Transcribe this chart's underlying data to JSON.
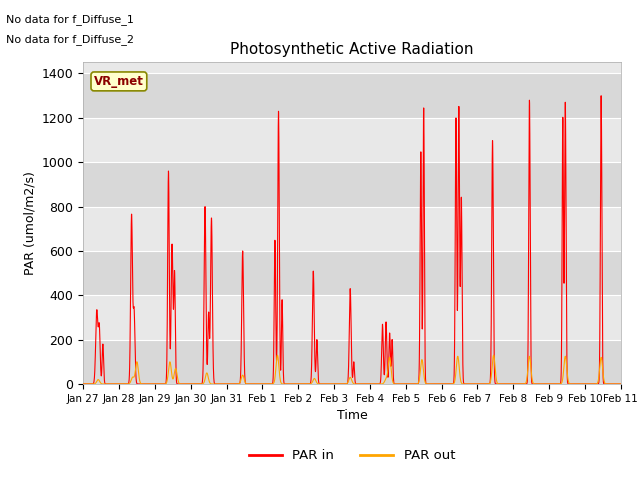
{
  "title": "Photosynthetic Active Radiation",
  "xlabel": "Time",
  "ylabel": "PAR (umol/m2/s)",
  "ylim": [
    0,
    1450
  ],
  "text_no_data_1": "No data for f_Diffuse_1",
  "text_no_data_2": "No data for f_Diffuse_2",
  "vr_met_label": "VR_met",
  "legend_par_in": "PAR in",
  "legend_par_out": "PAR out",
  "color_par_in": "#ff0000",
  "color_par_out": "#ffa500",
  "bg_color": "#e8e8e8",
  "band_colors": [
    "#d8d8d8",
    "#e8e8e8"
  ],
  "xtick_labels": [
    "Jan 27",
    "Jan 28",
    "Jan 29",
    "Jan 30",
    "Jan 31",
    "Feb 1",
    "Feb 2",
    "Feb 3",
    "Feb 4",
    "Feb 5",
    "Feb 6",
    "Feb 7",
    "Feb 8",
    "Feb 9",
    "Feb 10",
    "Feb 11"
  ],
  "ytick_vals": [
    0,
    200,
    400,
    600,
    800,
    1000,
    1200,
    1400
  ],
  "day_profiles_in": [
    [
      [
        0.38,
        330,
        0.03
      ],
      [
        0.45,
        250,
        0.025
      ],
      [
        0.55,
        180,
        0.02
      ]
    ],
    [
      [
        0.35,
        760,
        0.025
      ],
      [
        0.42,
        330,
        0.025
      ]
    ],
    [
      [
        0.38,
        960,
        0.022
      ],
      [
        0.48,
        630,
        0.025
      ],
      [
        0.55,
        500,
        0.02
      ]
    ],
    [
      [
        0.4,
        800,
        0.025
      ],
      [
        0.5,
        320,
        0.02
      ],
      [
        0.58,
        750,
        0.025
      ]
    ],
    [
      [
        0.45,
        600,
        0.025
      ]
    ],
    [
      [
        0.45,
        1230,
        0.022
      ],
      [
        0.35,
        650,
        0.02
      ],
      [
        0.55,
        380,
        0.018
      ]
    ],
    [
      [
        0.42,
        510,
        0.025
      ],
      [
        0.52,
        200,
        0.02
      ]
    ],
    [
      [
        0.45,
        430,
        0.025
      ],
      [
        0.55,
        100,
        0.018
      ]
    ],
    [
      [
        0.35,
        270,
        0.022
      ],
      [
        0.45,
        280,
        0.022
      ],
      [
        0.55,
        230,
        0.02
      ],
      [
        0.62,
        200,
        0.018
      ]
    ],
    [
      [
        0.42,
        1050,
        0.02
      ],
      [
        0.5,
        1250,
        0.018
      ]
    ],
    [
      [
        0.4,
        1200,
        0.02
      ],
      [
        0.48,
        1250,
        0.02
      ],
      [
        0.55,
        840,
        0.02
      ]
    ],
    [
      [
        0.42,
        1100,
        0.022
      ]
    ],
    [
      [
        0.45,
        1280,
        0.02
      ]
    ],
    [
      [
        0.45,
        1270,
        0.02
      ],
      [
        0.38,
        1200,
        0.018
      ]
    ],
    [
      [
        0.45,
        1300,
        0.02
      ]
    ]
  ],
  "day_profiles_out": [
    [
      [
        0.42,
        20,
        0.04
      ]
    ],
    [
      [
        0.38,
        30,
        0.04
      ],
      [
        0.5,
        100,
        0.04
      ]
    ],
    [
      [
        0.42,
        100,
        0.04
      ],
      [
        0.58,
        70,
        0.04
      ]
    ],
    [
      [
        0.45,
        50,
        0.04
      ]
    ],
    [
      [
        0.45,
        40,
        0.04
      ]
    ],
    [
      [
        0.42,
        130,
        0.04
      ]
    ],
    [
      [
        0.45,
        25,
        0.04
      ]
    ],
    [
      [
        0.45,
        30,
        0.04
      ]
    ],
    [
      [
        0.45,
        20,
        0.04
      ],
      [
        0.55,
        120,
        0.04
      ]
    ],
    [
      [
        0.45,
        110,
        0.04
      ]
    ],
    [
      [
        0.45,
        125,
        0.04
      ]
    ],
    [
      [
        0.45,
        130,
        0.04
      ]
    ],
    [
      [
        0.45,
        125,
        0.04
      ]
    ],
    [
      [
        0.45,
        125,
        0.04
      ]
    ],
    [
      [
        0.45,
        120,
        0.04
      ]
    ]
  ]
}
